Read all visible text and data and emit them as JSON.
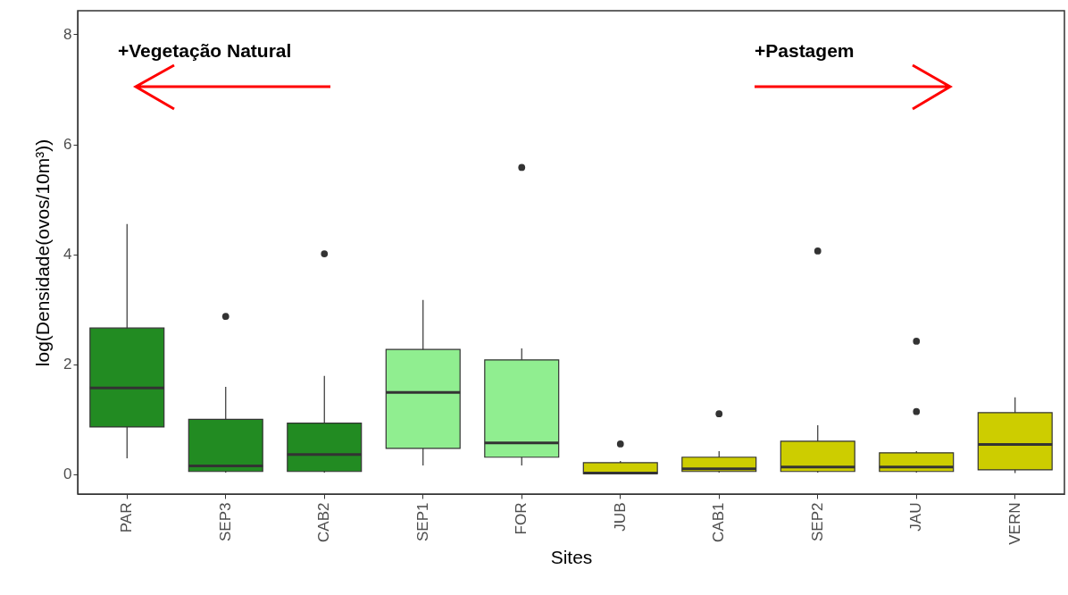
{
  "chart_data": {
    "type": "box",
    "xlabel": "Sites",
    "ylabel": "log(Densidade(ovos/10m³))",
    "categories": [
      "PAR",
      "SEP3",
      "CAB2",
      "SEP1",
      "FOR",
      "JUB",
      "CAB1",
      "SEP2",
      "JAU",
      "VERN"
    ],
    "colors": [
      "#228b22",
      "#228b22",
      "#228b22",
      "#90ee90",
      "#90ee90",
      "#cdcd00",
      "#cdcd00",
      "#cdcd00",
      "#cdcd00",
      "#cdcd00"
    ],
    "boxes": [
      {
        "low": 0.29,
        "q1": 0.86,
        "median": 1.57,
        "q3": 2.66,
        "high": 4.55
      },
      {
        "low": 0.03,
        "q1": 0.05,
        "median": 0.15,
        "q3": 1.0,
        "high": 1.59,
        "outliers": [
          2.87
        ]
      },
      {
        "low": 0.03,
        "q1": 0.05,
        "median": 0.36,
        "q3": 0.93,
        "high": 1.79,
        "outliers": [
          4.01
        ]
      },
      {
        "low": 0.16,
        "q1": 0.47,
        "median": 1.49,
        "q3": 2.27,
        "high": 3.17
      },
      {
        "low": 0.16,
        "q1": 0.31,
        "median": 0.57,
        "q3": 2.08,
        "high": 2.29,
        "outliers": [
          5.58
        ]
      },
      {
        "low": 0.0,
        "q1": 0.01,
        "median": 0.02,
        "q3": 0.21,
        "high": 0.24,
        "outliers": [
          0.55
        ]
      },
      {
        "low": 0.03,
        "q1": 0.05,
        "median": 0.1,
        "q3": 0.31,
        "high": 0.42,
        "outliers": [
          1.1
        ]
      },
      {
        "low": 0.03,
        "q1": 0.05,
        "median": 0.13,
        "q3": 0.6,
        "high": 0.89,
        "outliers": [
          4.06
        ]
      },
      {
        "low": 0.03,
        "q1": 0.05,
        "median": 0.13,
        "q3": 0.39,
        "high": 0.42,
        "outliers": [
          2.42,
          1.14
        ]
      },
      {
        "low": 0.02,
        "q1": 0.08,
        "median": 0.54,
        "q3": 1.12,
        "high": 1.4
      }
    ],
    "ylim": [
      -0.36,
      8.43
    ],
    "yticks": [
      0,
      2,
      4,
      6,
      8
    ],
    "annotations": [
      "+Vegetação Natural",
      "+Pastagem"
    ]
  }
}
